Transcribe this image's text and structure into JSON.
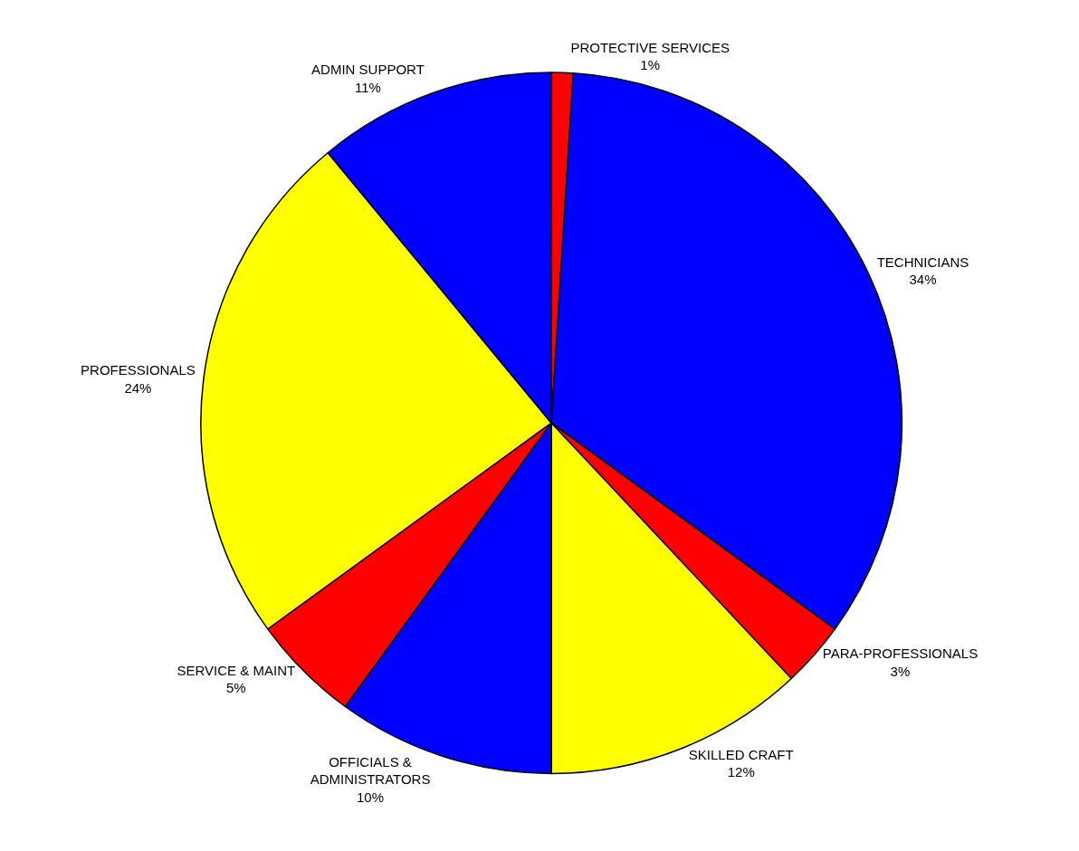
{
  "chart_data": {
    "type": "pie",
    "categories": [
      "PROTECTIVE SERVICES",
      "TECHNICIANS",
      "PARA-PROFESSIONALS",
      "SKILLED CRAFT",
      "OFFICIALS & ADMINISTRATORS",
      "SERVICE & MAINT",
      "PROFESSIONALS",
      "ADMIN SUPPORT"
    ],
    "values": [
      1,
      34,
      3,
      12,
      10,
      5,
      24,
      11
    ],
    "value_labels": [
      "1%",
      "34%",
      "3%",
      "12%",
      "10%",
      "5%",
      "24%",
      "11%"
    ],
    "colors": [
      "#ff0000",
      "#0000ff",
      "#ff0000",
      "#ffff00",
      "#0000ff",
      "#ff0000",
      "#ffff00",
      "#0000ff"
    ]
  }
}
